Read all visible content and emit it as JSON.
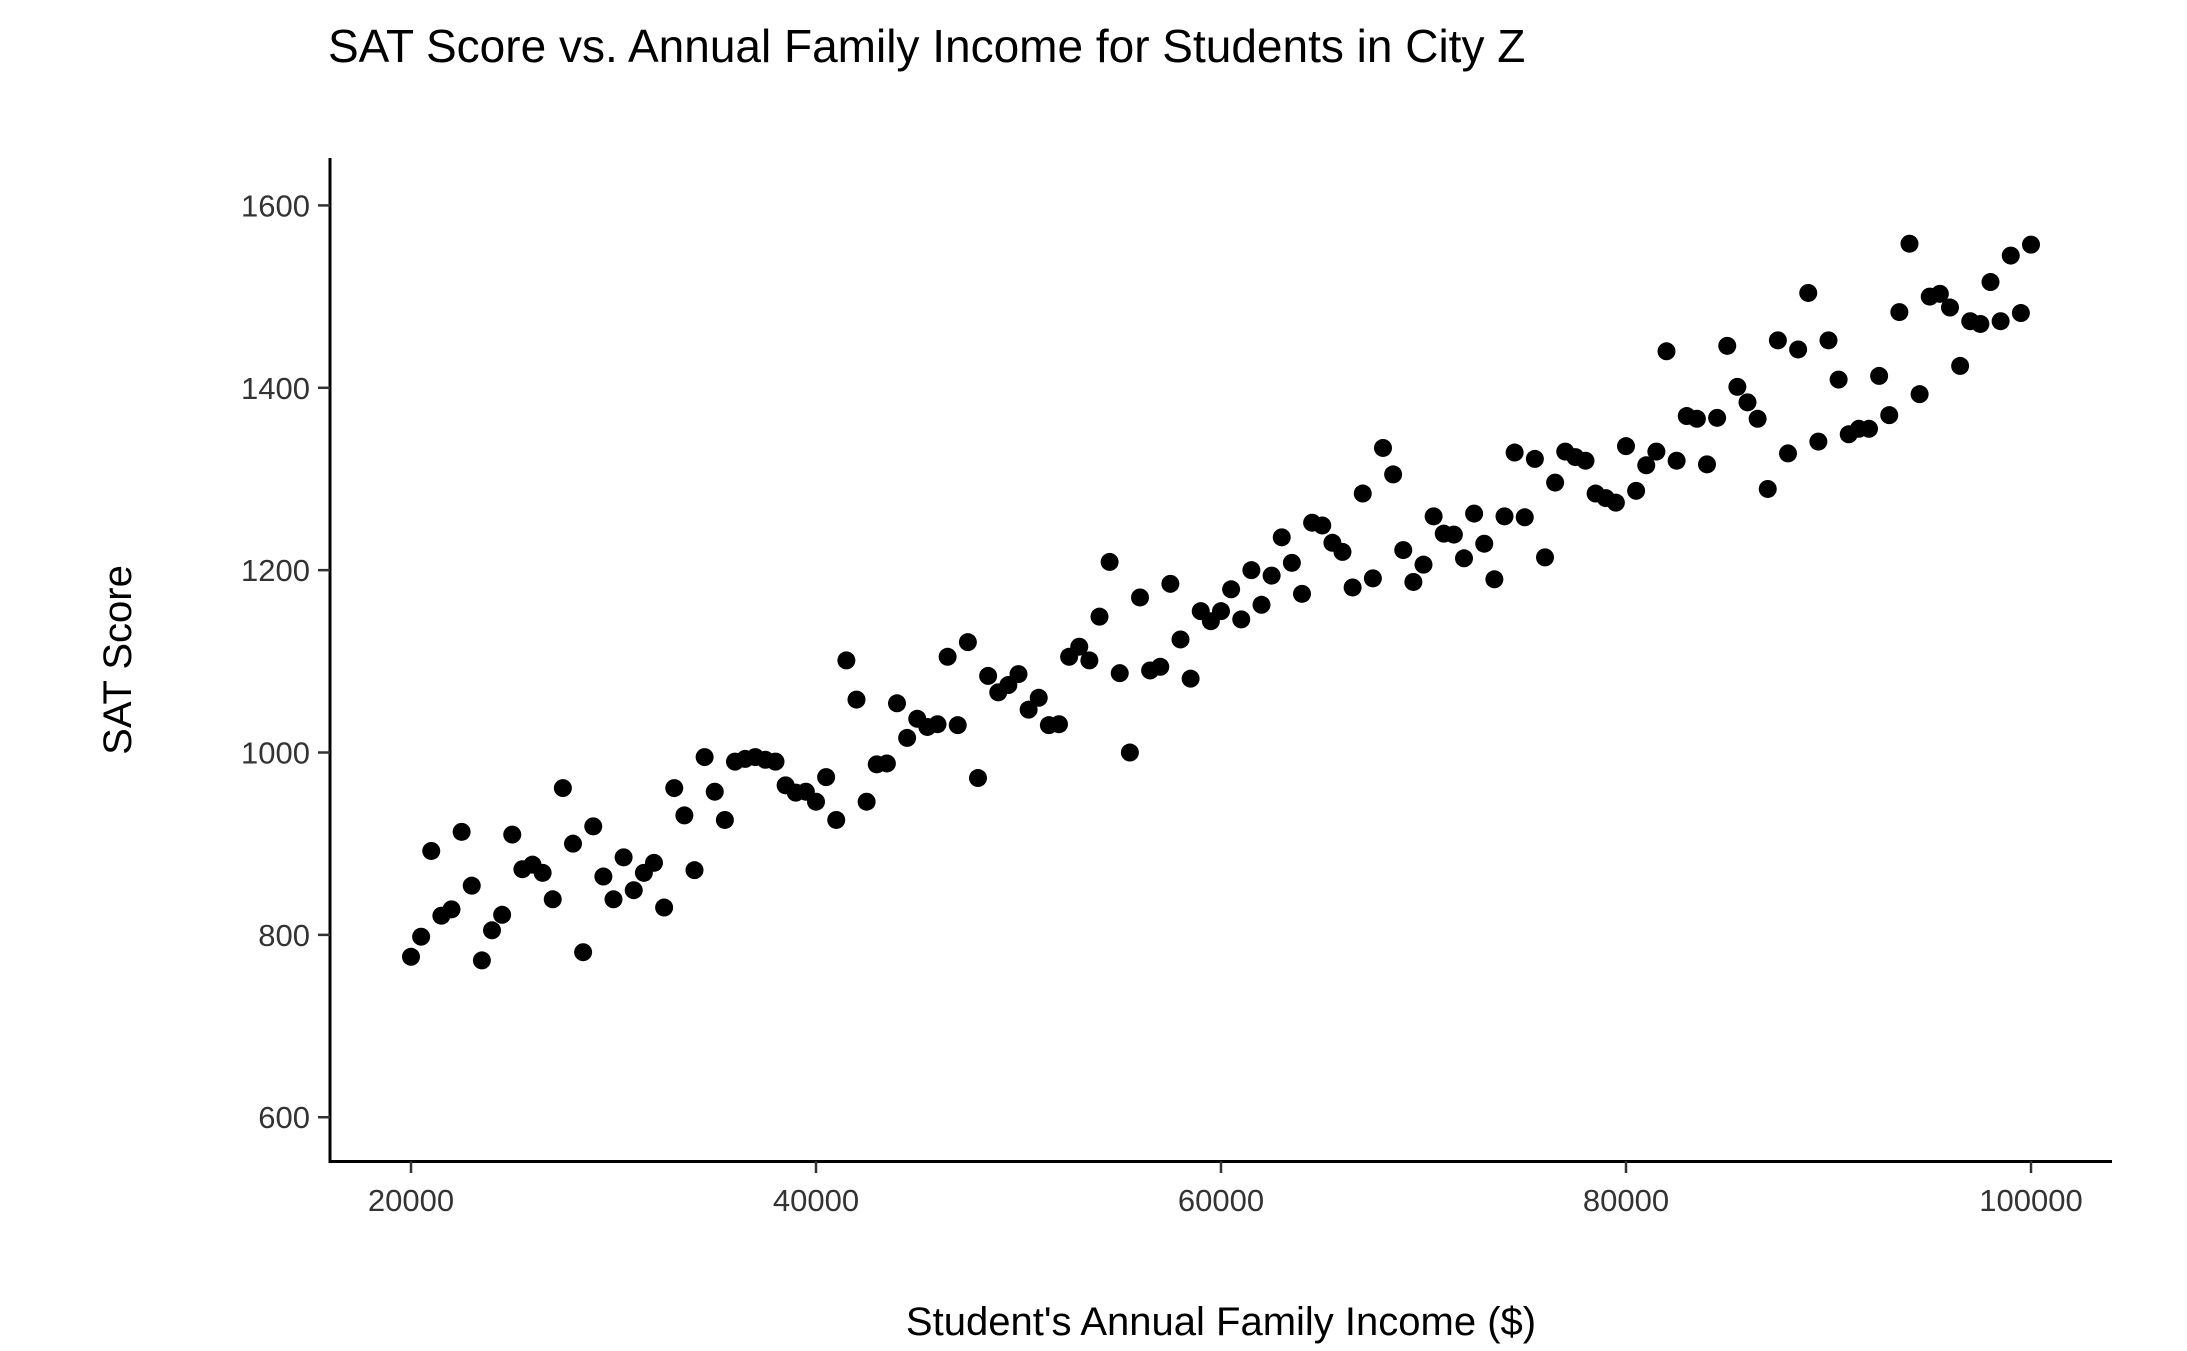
{
  "chart_data": {
    "type": "scatter",
    "title": "SAT Score vs. Annual Family Income for Students in City Z",
    "xlabel": "Student's Annual Family Income ($)",
    "ylabel": "SAT Score",
    "xlim": [
      16000,
      104000
    ],
    "ylim": [
      552,
      1652
    ],
    "xticks": [
      20000,
      40000,
      60000,
      80000,
      100000
    ],
    "yticks": [
      600,
      800,
      1000,
      1200,
      1400,
      1600
    ],
    "grid": false,
    "legend": "none",
    "point_color": "#000000",
    "series": [
      {
        "x": [
          20000,
          20500,
          21000,
          21500,
          22000,
          22500,
          23000,
          23500,
          24000,
          24500,
          25000,
          25500,
          26000,
          26500,
          27000,
          27500,
          28000,
          28500,
          29000,
          29500,
          30000,
          30500,
          31000,
          31500,
          32000,
          32500,
          33000,
          33500,
          34000,
          34500,
          35000,
          35500,
          36000,
          36500,
          37000,
          37500,
          38000,
          38500,
          39000,
          39500,
          40000,
          40500,
          41000,
          41500,
          42000,
          42500,
          43000,
          43500,
          44000,
          44500,
          45000,
          45500,
          46000,
          46500,
          47000,
          47500,
          48000,
          48500,
          49000,
          49500,
          50000,
          50500,
          51000,
          51500,
          52000,
          52500,
          53000,
          53500,
          54000,
          54500,
          55000,
          55500,
          56000,
          56500,
          57000,
          57500,
          58000,
          58500,
          59000,
          59500,
          60000,
          60500,
          61000,
          61500,
          62000,
          62500,
          63000,
          63500,
          64000,
          64500,
          65000,
          65500,
          66000,
          66500,
          67000,
          67500,
          68000,
          68500,
          69000,
          69500,
          70000,
          70500,
          71000,
          71500,
          72000,
          72500,
          73000,
          73500,
          74000,
          74500,
          75000,
          75500,
          76000,
          76500,
          77000,
          77500,
          78000,
          78500,
          79000,
          79500,
          80000,
          80500,
          81000,
          81500,
          82000,
          82500,
          83000,
          83500,
          84000,
          84500,
          85000,
          85500,
          86000,
          86500,
          87000,
          87500,
          88000,
          88500,
          89000,
          89500,
          90000,
          90500,
          91000,
          91500,
          92000,
          92500,
          93000,
          93500,
          94000,
          94500,
          95000,
          95500,
          96000,
          96500,
          97000,
          97500,
          98000,
          98500,
          99000,
          99500,
          100000
        ],
        "y": [
          776,
          798,
          892,
          821,
          828,
          913,
          854,
          772,
          805,
          822,
          910,
          872,
          877,
          868,
          839,
          961,
          900,
          781,
          919,
          864,
          839,
          885,
          849,
          868,
          879,
          830,
          961,
          931,
          871,
          995,
          957,
          926,
          990,
          993,
          995,
          992,
          990,
          964,
          956,
          957,
          946,
          973,
          926,
          1101,
          1058,
          946,
          987,
          988,
          1054,
          1016,
          1037,
          1028,
          1031,
          1105,
          1030,
          1121,
          972,
          1084,
          1066,
          1074,
          1086,
          1047,
          1060,
          1030,
          1031,
          1105,
          1116,
          1101,
          1149,
          1209,
          1087,
          1000,
          1170,
          1090,
          1094,
          1185,
          1124,
          1081,
          1155,
          1144,
          1155,
          1179,
          1146,
          1200,
          1162,
          1194,
          1236,
          1208,
          1174,
          1252,
          1249,
          1230,
          1220,
          1181,
          1284,
          1191,
          1334,
          1305,
          1222,
          1187,
          1206,
          1259,
          1240,
          1239,
          1213,
          1262,
          1229,
          1190,
          1259,
          1329,
          1258,
          1322,
          1214,
          1296,
          1330,
          1324,
          1320,
          1284,
          1279,
          1274,
          1336,
          1287,
          1315,
          1330,
          1440,
          1320,
          1369,
          1366,
          1316,
          1367,
          1446,
          1401,
          1384,
          1366,
          1289,
          1452,
          1328,
          1442,
          1504,
          1341,
          1452,
          1409,
          1349,
          1355,
          1355,
          1413,
          1370,
          1483,
          1558,
          1393,
          1500,
          1503,
          1488,
          1424,
          1473,
          1470,
          1516,
          1473,
          1545,
          1482,
          1557
        ]
      }
    ]
  }
}
